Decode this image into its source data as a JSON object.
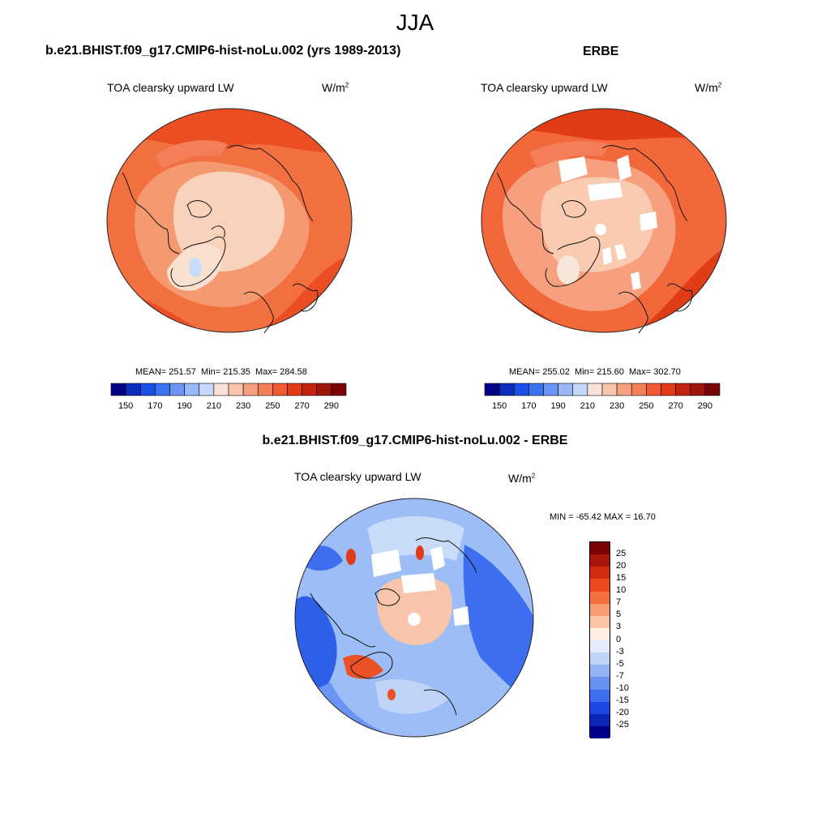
{
  "figure": {
    "season": "JJA",
    "panel_left": {
      "case_title": "b.e21.BHIST.f09_g17.CMIP6-hist-noLu.002 (yrs 1989-2013)",
      "variable": "TOA clearsky upward LW",
      "units_base": "W/m",
      "units_exp": "2",
      "mean_text": "MEAN= 251.57",
      "min_text": "Min= 215.35",
      "max_text": "Max= 284.58"
    },
    "panel_right": {
      "case_title": "ERBE",
      "variable": "TOA clearsky upward LW",
      "units_base": "W/m",
      "units_exp": "2",
      "mean_text": "MEAN= 255.02",
      "min_text": "Min= 215.60",
      "max_text": "Max= 302.70"
    },
    "panel_diff": {
      "case_title": "b.e21.BHIST.f09_g17.CMIP6-hist-noLu.002 - ERBE",
      "variable": "TOA clearsky upward LW",
      "units_base": "W/m",
      "units_exp": "2",
      "range_text": "MIN = -65.42 MAX =  16.70"
    }
  },
  "chart_data": [
    {
      "type": "heatmap",
      "title": "TOA clearsky upward LW",
      "case": "b.e21.BHIST.f09_g17.CMIP6-hist-noLu.002 (yrs 1989-2013)",
      "projection": "north polar stereographic",
      "units": "W/m2",
      "mean": 251.57,
      "min": 215.35,
      "max": 284.58,
      "colorbar_ticks": [
        "150",
        "170",
        "190",
        "210",
        "230",
        "250",
        "270",
        "290"
      ],
      "colorbar_colors": [
        "#020288",
        "#0b2dbd",
        "#1a50e6",
        "#3d72f2",
        "#6a95f5",
        "#98b8f7",
        "#c6d8f9",
        "#f9e3d8",
        "#f8c4ac",
        "#f7a07f",
        "#f47e58",
        "#f15a33",
        "#e33a17",
        "#c32310",
        "#a0150b",
        "#7a0403"
      ]
    },
    {
      "type": "heatmap",
      "title": "TOA clearsky upward LW",
      "case": "ERBE",
      "projection": "north polar stereographic",
      "units": "W/m2",
      "mean": 255.02,
      "min": 215.6,
      "max": 302.7,
      "colorbar_ticks": [
        "150",
        "170",
        "190",
        "210",
        "230",
        "250",
        "270",
        "290"
      ],
      "colorbar_colors": [
        "#020288",
        "#0b2dbd",
        "#1a50e6",
        "#3d72f2",
        "#6a95f5",
        "#98b8f7",
        "#c6d8f9",
        "#f9e3d8",
        "#f8c4ac",
        "#f7a07f",
        "#f47e58",
        "#f15a33",
        "#e33a17",
        "#c32310",
        "#a0150b",
        "#7a0403"
      ]
    },
    {
      "type": "heatmap",
      "title": "TOA clearsky upward LW",
      "case": "b.e21.BHIST.f09_g17.CMIP6-hist-noLu.002 - ERBE",
      "projection": "north polar stereographic",
      "units": "W/m2",
      "min": -65.42,
      "max": 16.7,
      "colorbar_ticks": [
        "25",
        "20",
        "15",
        "10",
        "7",
        "5",
        "3",
        "0",
        "-3",
        "-5",
        "-7",
        "-10",
        "-15",
        "-20",
        "-25"
      ],
      "colorbar_colors": [
        "#7a0403",
        "#a8150b",
        "#d02c0f",
        "#ee4a1f",
        "#f4713f",
        "#f89c72",
        "#fbc6a6",
        "#fdeee2",
        "#e3ecfb",
        "#c0d4f8",
        "#94b5f5",
        "#6791f2",
        "#3e6ef0",
        "#1c47e2",
        "#0b27b8",
        "#020288"
      ]
    }
  ]
}
